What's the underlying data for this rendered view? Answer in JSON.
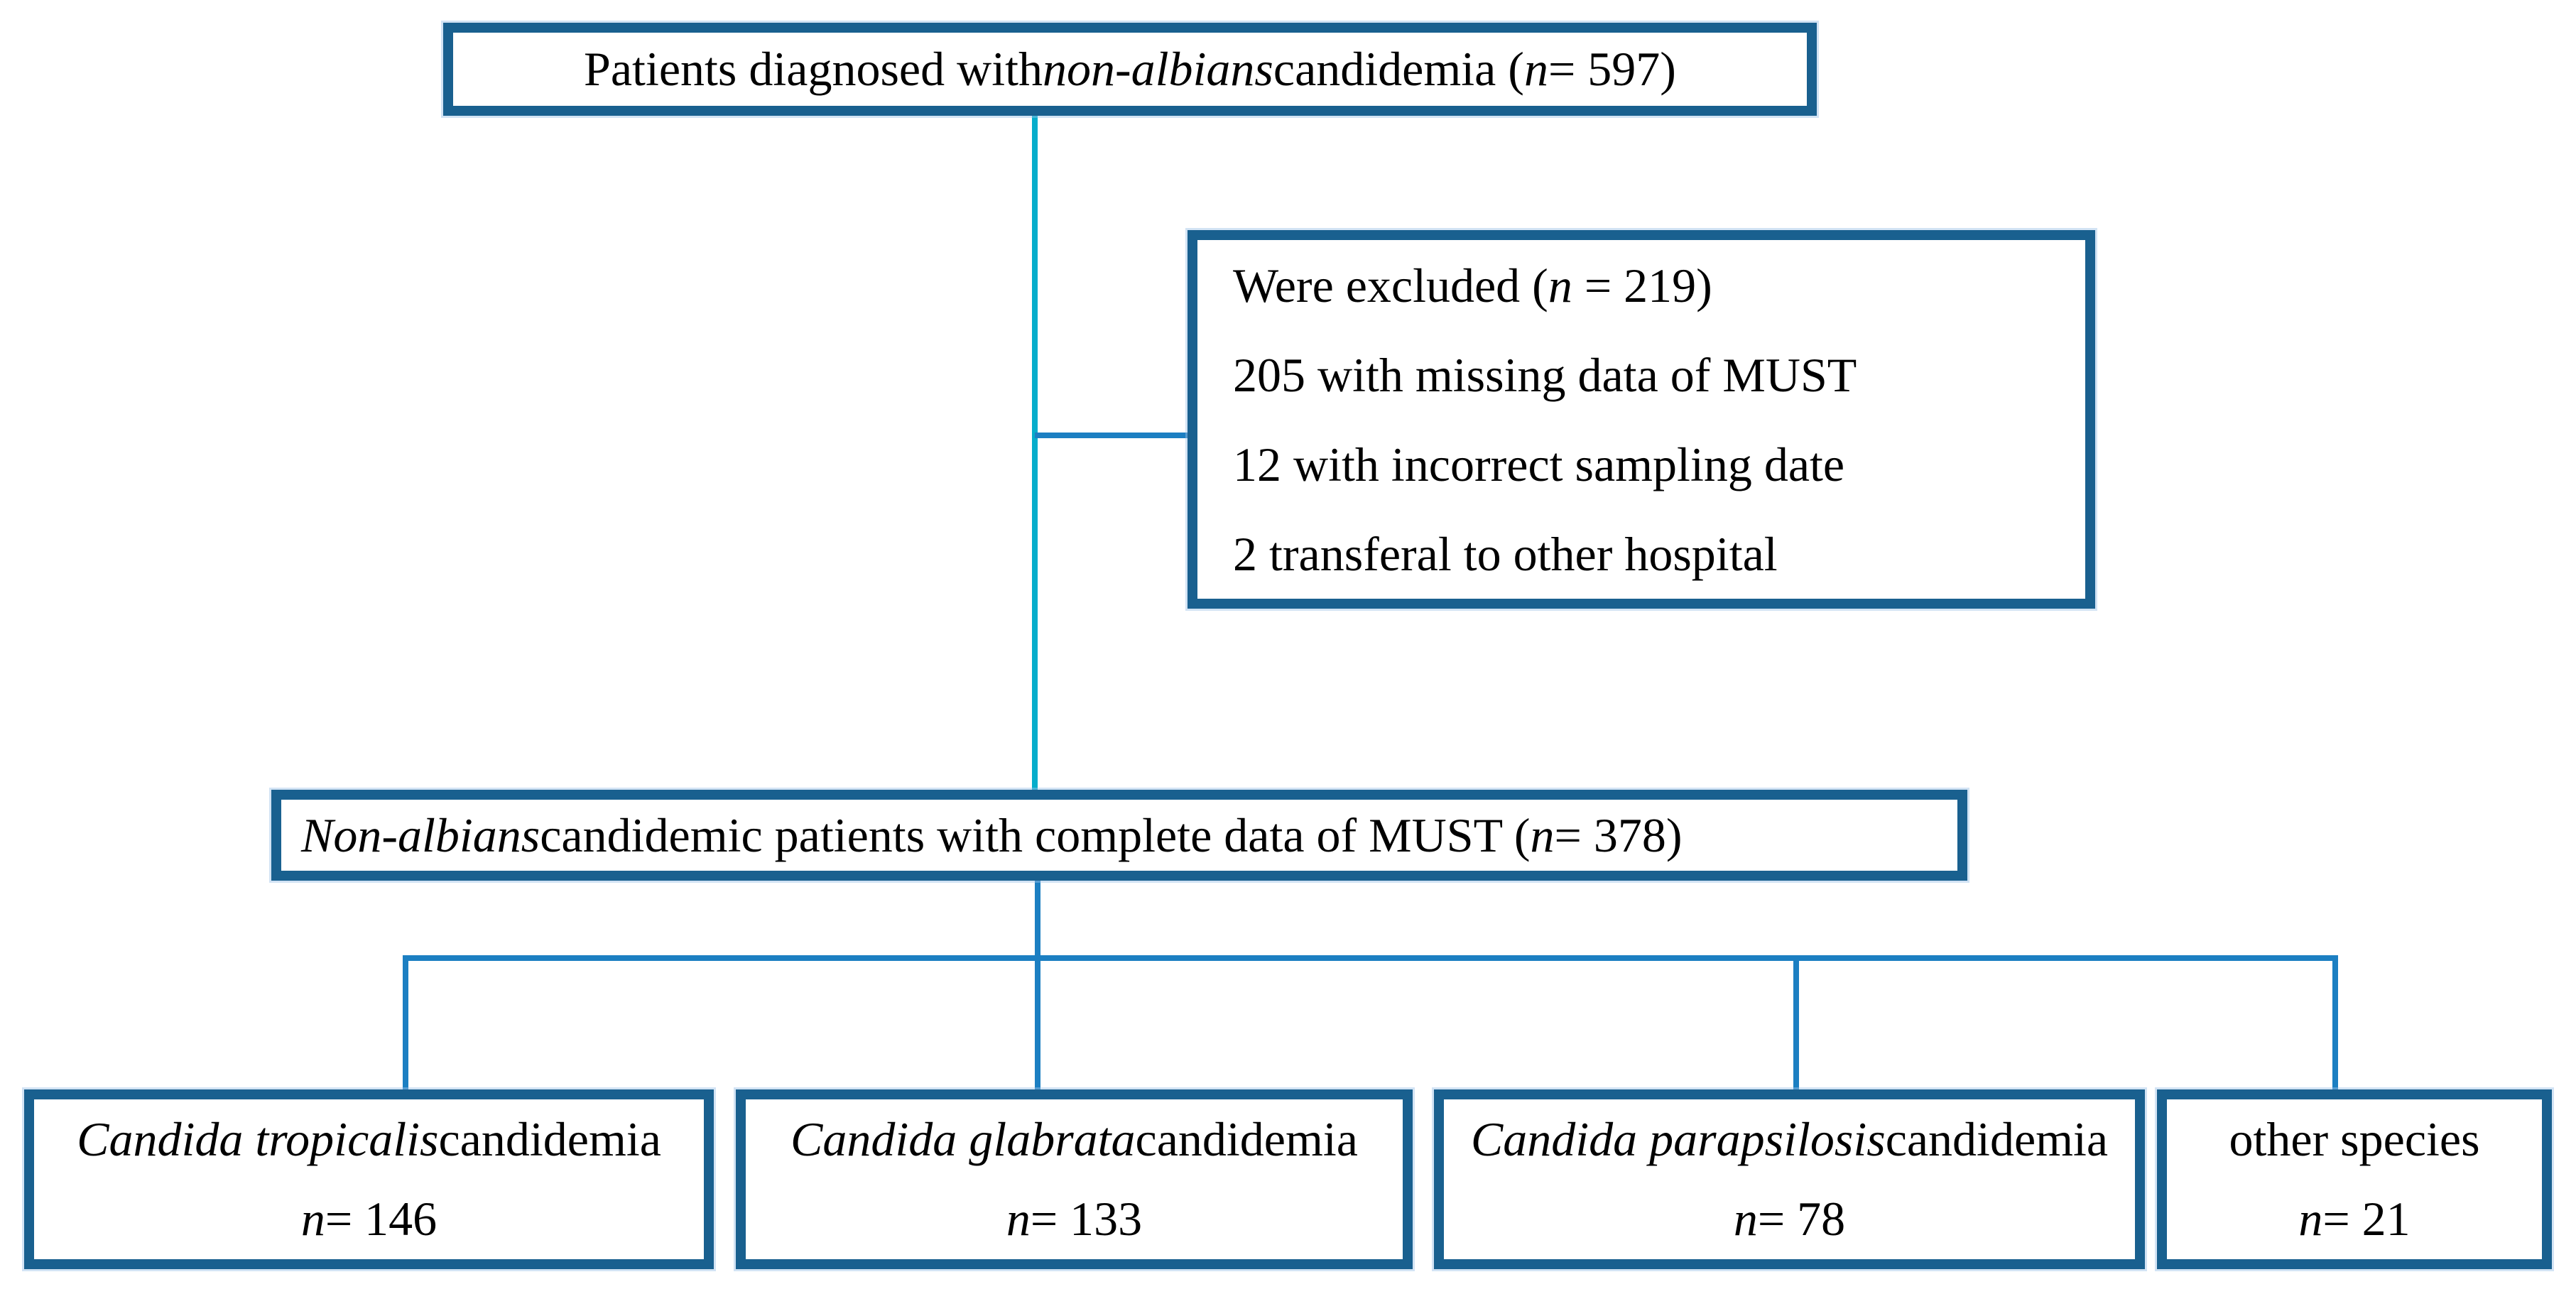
{
  "colors": {
    "box_border": "#19608F",
    "stem_cyan": "#05ADCB",
    "connector_blue": "#1C7FC2",
    "text_color": "#000000",
    "bg_color": "#FFFFFF"
  },
  "nodes": {
    "diagnosed": {
      "segments": [
        {
          "text": "Patients diagnosed with "
        },
        {
          "text": "non-albians",
          "italic": true
        },
        {
          "text": " candidemia ("
        },
        {
          "text": "n",
          "italic": true
        },
        {
          "text": " = 597)"
        }
      ]
    },
    "excluded": {
      "lines": [
        [
          {
            "text": "Were excluded ("
          },
          {
            "text": "n",
            "italic": true
          },
          {
            "text": " = 219)"
          }
        ],
        [
          {
            "text": "205 with missing data of MUST"
          }
        ],
        [
          {
            "text": "12 with incorrect sampling date"
          }
        ],
        [
          {
            "text": "2 transferal to other hospital"
          }
        ]
      ]
    },
    "complete": {
      "segments": [
        {
          "text": "Non-albians",
          "italic": true
        },
        {
          "text": " candidemic patients with complete data of MUST ("
        },
        {
          "text": "n",
          "italic": true
        },
        {
          "text": " = 378)"
        }
      ]
    },
    "tropicalis": {
      "title": [
        {
          "text": "Candida tropicalis",
          "italic": true
        },
        {
          "text": " candidemia"
        }
      ],
      "count": [
        {
          "text": "n",
          "italic": true
        },
        {
          "text": " = 146"
        }
      ]
    },
    "glabrata": {
      "title": [
        {
          "text": "Candida glabrata",
          "italic": true
        },
        {
          "text": " candidemia"
        }
      ],
      "count": [
        {
          "text": "n",
          "italic": true
        },
        {
          "text": " = 133"
        }
      ]
    },
    "parapsilosis": {
      "title": [
        {
          "text": "Candida parapsilosis",
          "italic": true
        },
        {
          "text": " candidemia"
        }
      ],
      "count": [
        {
          "text": "n",
          "italic": true
        },
        {
          "text": " = 78"
        }
      ]
    },
    "other_species": {
      "title": [
        {
          "text": "other species"
        }
      ],
      "count": [
        {
          "text": "n",
          "italic": true
        },
        {
          "text": " = 21"
        }
      ]
    }
  }
}
